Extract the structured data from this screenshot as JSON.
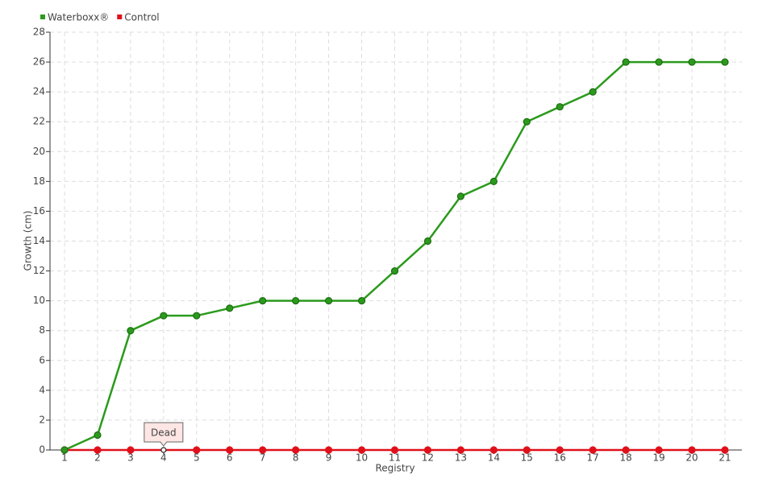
{
  "chart_data": {
    "type": "line",
    "x_label": "Registry",
    "y_label": "Growth (cm)",
    "categories": [
      "1",
      "2",
      "3",
      "4",
      "5",
      "6",
      "7",
      "8",
      "9",
      "10",
      "11",
      "12",
      "13",
      "14",
      "15",
      "16",
      "17",
      "18",
      "19",
      "20",
      "21"
    ],
    "series": [
      {
        "name": "Waterboxx®",
        "color": "#2b9a1c",
        "values": [
          0,
          1,
          8,
          9,
          9,
          9.5,
          10,
          10,
          10,
          10,
          12,
          14,
          17,
          18,
          22,
          23,
          24,
          26,
          26,
          26,
          26
        ]
      },
      {
        "name": "Control",
        "color": "#e0101a",
        "values": [
          0,
          0,
          0,
          0,
          0,
          0,
          0,
          0,
          0,
          0,
          0,
          0,
          0,
          0,
          0,
          0,
          0,
          0,
          0,
          0,
          0
        ]
      }
    ],
    "annotation": {
      "text": "Dead",
      "x": "4",
      "series": "Control"
    },
    "ylim": [
      0,
      28
    ],
    "yticks": [
      0,
      2,
      4,
      6,
      8,
      10,
      12,
      14,
      16,
      18,
      20,
      22,
      24,
      26,
      28
    ],
    "grid": true,
    "legend": "top-left"
  }
}
